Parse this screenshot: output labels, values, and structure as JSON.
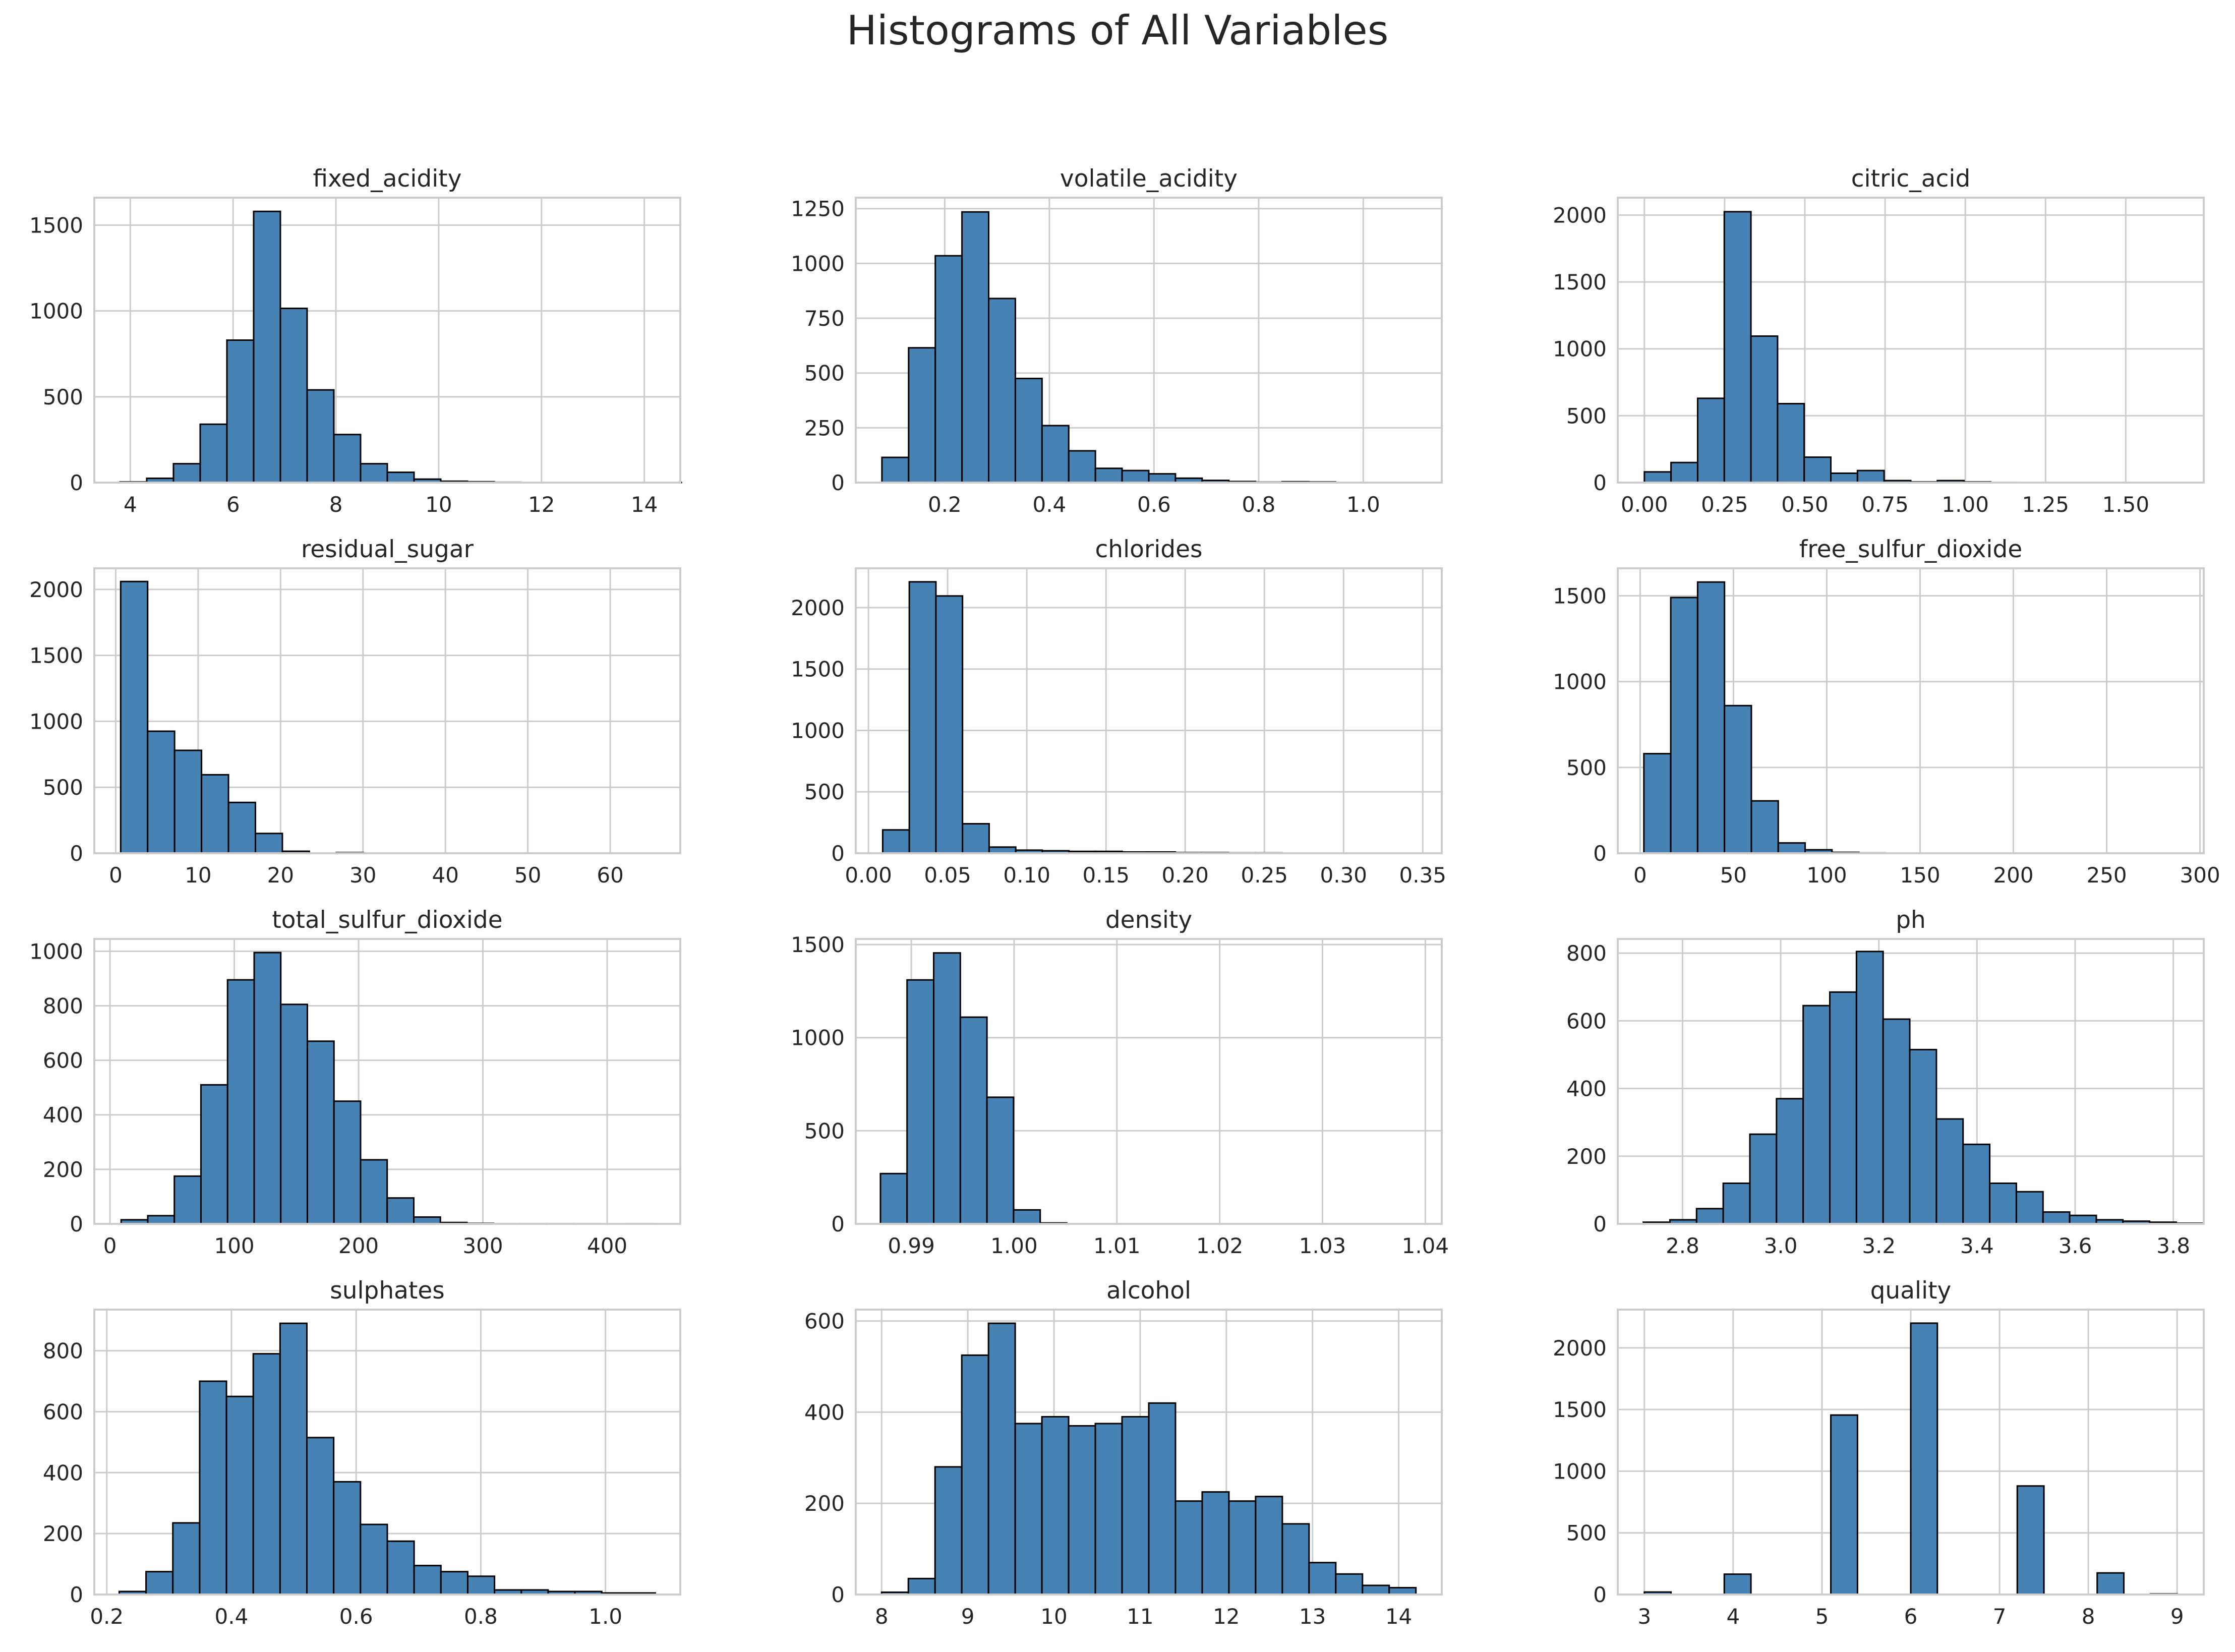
{
  "figure": {
    "title": "Histograms of All Variables"
  },
  "style": {
    "bar_fill": "#4682b4",
    "bar_edge": "#000000",
    "grid": "#cccccc",
    "axes_edge": "#cccccc",
    "text": "#262626"
  },
  "chart_data": [
    {
      "type": "bar",
      "title": "fixed_acidity",
      "grid": true,
      "xlim": [
        3.3,
        14.7
      ],
      "ylim": [
        0,
        1660
      ],
      "xticks": [
        4,
        6,
        8,
        10,
        12,
        14
      ],
      "xtick_labels": [
        "4",
        "6",
        "8",
        "10",
        "12",
        "14"
      ],
      "yticks": [
        0,
        500,
        1000,
        1500
      ],
      "ytick_labels": [
        "0",
        "500",
        "1000",
        "1500"
      ],
      "bin_start": 3.8,
      "bin_width": 0.52,
      "counts": [
        4,
        25,
        110,
        340,
        830,
        1580,
        1015,
        540,
        280,
        110,
        60,
        20,
        8,
        5,
        2,
        1,
        1,
        0,
        0,
        0,
        1
      ]
    },
    {
      "type": "bar",
      "title": "volatile_acidity",
      "grid": true,
      "xlim": [
        0.03,
        1.15
      ],
      "ylim": [
        0,
        1300
      ],
      "xticks": [
        0.2,
        0.4,
        0.6,
        0.8,
        1.0
      ],
      "xtick_labels": [
        "0.2",
        "0.4",
        "0.6",
        "0.8",
        "1.0"
      ],
      "yticks": [
        0,
        250,
        500,
        750,
        1000,
        1250
      ],
      "ytick_labels": [
        "0",
        "250",
        "500",
        "750",
        "1000",
        "1250"
      ],
      "bin_start": 0.08,
      "bin_width": 0.051,
      "counts": [
        115,
        615,
        1035,
        1235,
        840,
        475,
        260,
        145,
        65,
        55,
        40,
        20,
        10,
        5,
        2,
        4,
        3,
        1,
        1,
        1
      ]
    },
    {
      "type": "bar",
      "title": "citric_acid",
      "grid": true,
      "xlim": [
        -0.083,
        1.743
      ],
      "ylim": [
        0,
        2130
      ],
      "xticks": [
        0,
        0.25,
        0.5,
        0.75,
        1.0,
        1.25,
        1.5
      ],
      "xtick_labels": [
        "0.00",
        "0.25",
        "0.50",
        "0.75",
        "1.00",
        "1.25",
        "1.50"
      ],
      "yticks": [
        0,
        500,
        1000,
        1500,
        2000
      ],
      "ytick_labels": [
        "0",
        "500",
        "1000",
        "1500",
        "2000"
      ],
      "bin_start": 0,
      "bin_width": 0.083,
      "counts": [
        80,
        150,
        630,
        2025,
        1095,
        590,
        190,
        70,
        90,
        15,
        5,
        15,
        5,
        2,
        1,
        1,
        1,
        1,
        1,
        1
      ]
    },
    {
      "type": "bar",
      "title": "residual_sugar",
      "grid": true,
      "xlim": [
        -2.6,
        68.5
      ],
      "ylim": [
        0,
        2160
      ],
      "xticks": [
        0,
        10,
        20,
        30,
        40,
        50,
        60
      ],
      "xtick_labels": [
        "0",
        "10",
        "20",
        "30",
        "40",
        "50",
        "60"
      ],
      "yticks": [
        0,
        500,
        1000,
        1500,
        2000
      ],
      "ytick_labels": [
        "0",
        "500",
        "1000",
        "1500",
        "2000"
      ],
      "bin_start": 0.6,
      "bin_width": 3.27,
      "counts": [
        2060,
        925,
        780,
        595,
        385,
        150,
        15,
        2,
        5,
        1,
        1,
        1,
        1,
        1,
        1,
        1,
        1,
        1,
        1,
        1
      ]
    },
    {
      "type": "bar",
      "title": "chlorides",
      "grid": true,
      "xlim": [
        -0.008,
        0.362
      ],
      "ylim": [
        0,
        2320
      ],
      "xticks": [
        0,
        0.05,
        0.1,
        0.15,
        0.2,
        0.25,
        0.3,
        0.35
      ],
      "xtick_labels": [
        "0.00",
        "0.05",
        "0.10",
        "0.15",
        "0.20",
        "0.25",
        "0.30",
        "0.35"
      ],
      "yticks": [
        0,
        500,
        1000,
        1500,
        2000
      ],
      "ytick_labels": [
        "0",
        "500",
        "1000",
        "1500",
        "2000"
      ],
      "bin_start": 0.009,
      "bin_width": 0.0168,
      "counts": [
        190,
        2210,
        2095,
        240,
        50,
        25,
        20,
        15,
        15,
        10,
        10,
        5,
        5,
        3,
        3,
        2,
        2,
        1,
        1,
        1
      ]
    },
    {
      "type": "bar",
      "title": "free_sulfur_dioxide",
      "grid": true,
      "xlim": [
        -12,
        302
      ],
      "ylim": [
        0,
        1660
      ],
      "xticks": [
        0,
        50,
        100,
        150,
        200,
        250,
        300
      ],
      "xtick_labels": [
        "0",
        "50",
        "100",
        "150",
        "200",
        "250",
        "300"
      ],
      "yticks": [
        0,
        500,
        1000,
        1500
      ],
      "ytick_labels": [
        "0",
        "500",
        "1000",
        "1500"
      ],
      "bin_start": 2,
      "bin_width": 14.4,
      "counts": [
        580,
        1490,
        1580,
        860,
        305,
        60,
        20,
        5,
        2,
        1,
        1,
        1,
        0,
        0,
        0,
        0,
        0,
        0,
        0,
        1
      ]
    },
    {
      "type": "bar",
      "title": "total_sulfur_dioxide",
      "grid": true,
      "xlim": [
        -12.6,
        458.8
      ],
      "ylim": [
        0,
        1045
      ],
      "xticks": [
        0,
        100,
        200,
        300,
        400
      ],
      "xtick_labels": [
        "0",
        "100",
        "200",
        "300",
        "400"
      ],
      "yticks": [
        0,
        200,
        400,
        600,
        800,
        1000
      ],
      "ytick_labels": [
        "0",
        "200",
        "400",
        "600",
        "800",
        "1000"
      ],
      "bin_start": 9,
      "bin_width": 21.4,
      "counts": [
        15,
        30,
        175,
        510,
        895,
        995,
        805,
        670,
        450,
        235,
        95,
        25,
        5,
        2,
        1,
        1,
        1,
        1,
        0,
        1
      ]
    },
    {
      "type": "bar",
      "title": "density",
      "grid": true,
      "xlim": [
        0.9846,
        1.0416
      ],
      "ylim": [
        0,
        1530
      ],
      "xticks": [
        0.99,
        1.0,
        1.01,
        1.02,
        1.03,
        1.04
      ],
      "xtick_labels": [
        "0.99",
        "1.00",
        "1.01",
        "1.02",
        "1.03",
        "1.04"
      ],
      "yticks": [
        0,
        500,
        1000,
        1500
      ],
      "ytick_labels": [
        "0",
        "500",
        "1000",
        "1500"
      ],
      "bin_start": 0.987,
      "bin_width": 0.00259,
      "counts": [
        270,
        1310,
        1455,
        1110,
        680,
        75,
        5,
        1,
        1,
        1,
        0,
        0,
        0,
        0,
        0,
        0,
        0,
        0,
        0,
        1
      ]
    },
    {
      "type": "bar",
      "title": "ph",
      "grid": true,
      "xlim": [
        2.668,
        3.862
      ],
      "ylim": [
        0,
        842
      ],
      "xticks": [
        2.8,
        3.0,
        3.2,
        3.4,
        3.6,
        3.8
      ],
      "xtick_labels": [
        "2.8",
        "3.0",
        "3.2",
        "3.4",
        "3.6",
        "3.8"
      ],
      "yticks": [
        0,
        200,
        400,
        600,
        800
      ],
      "ytick_labels": [
        "0",
        "200",
        "400",
        "600",
        "800"
      ],
      "bin_start": 2.72,
      "bin_width": 0.0543,
      "counts": [
        5,
        12,
        45,
        120,
        265,
        370,
        645,
        685,
        805,
        605,
        515,
        310,
        235,
        120,
        95,
        35,
        25,
        12,
        8,
        5,
        2
      ]
    },
    {
      "type": "bar",
      "title": "sulphates",
      "grid": true,
      "xlim": [
        0.18,
        1.12
      ],
      "ylim": [
        0,
        935
      ],
      "xticks": [
        0.2,
        0.4,
        0.6,
        0.8,
        1.0
      ],
      "xtick_labels": [
        "0.2",
        "0.4",
        "0.6",
        "0.8",
        "1.0"
      ],
      "yticks": [
        0,
        200,
        400,
        600,
        800
      ],
      "ytick_labels": [
        "0",
        "200",
        "400",
        "600",
        "800"
      ],
      "bin_start": 0.22,
      "bin_width": 0.043,
      "counts": [
        10,
        75,
        235,
        700,
        650,
        790,
        890,
        515,
        370,
        230,
        175,
        95,
        75,
        60,
        15,
        15,
        10,
        10,
        5,
        5
      ]
    },
    {
      "type": "bar",
      "title": "alcohol",
      "grid": true,
      "xlim": [
        7.7,
        14.5
      ],
      "ylim": [
        0,
        625
      ],
      "xticks": [
        8,
        9,
        10,
        11,
        12,
        13,
        14
      ],
      "xtick_labels": [
        "8",
        "9",
        "10",
        "11",
        "12",
        "13",
        "14"
      ],
      "yticks": [
        0,
        200,
        400,
        600
      ],
      "ytick_labels": [
        "0",
        "200",
        "400",
        "600"
      ],
      "bin_start": 8.0,
      "bin_width": 0.31,
      "counts": [
        5,
        35,
        280,
        525,
        595,
        375,
        390,
        370,
        375,
        390,
        420,
        205,
        225,
        205,
        215,
        155,
        70,
        45,
        20,
        15
      ]
    },
    {
      "type": "bar",
      "title": "quality",
      "grid": true,
      "xlim": [
        2.7,
        9.3
      ],
      "ylim": [
        0,
        2310
      ],
      "xticks": [
        3,
        4,
        5,
        6,
        7,
        8,
        9
      ],
      "xtick_labels": [
        "3",
        "4",
        "5",
        "6",
        "7",
        "8",
        "9"
      ],
      "yticks": [
        0,
        500,
        1000,
        1500,
        2000
      ],
      "ytick_labels": [
        "0",
        "500",
        "1000",
        "1500",
        "2000"
      ],
      "bin_start": 3,
      "bin_width": 0.3,
      "counts": [
        20,
        0,
        0,
        165,
        0,
        0,
        0,
        1455,
        0,
        0,
        2200,
        0,
        0,
        0,
        880,
        0,
        0,
        175,
        0,
        5
      ]
    }
  ]
}
